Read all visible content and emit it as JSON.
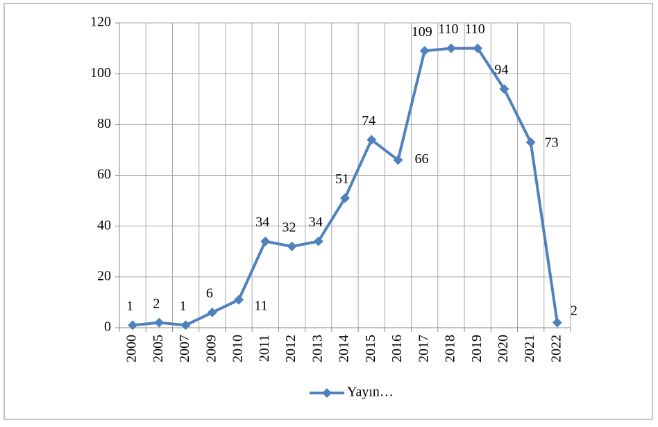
{
  "chart_data": {
    "type": "line",
    "categories": [
      "2000",
      "2005",
      "2007",
      "2009",
      "2010",
      "2011",
      "2012",
      "2013",
      "2014",
      "2015",
      "2016",
      "2017",
      "2018",
      "2019",
      "2020",
      "2021",
      "2022"
    ],
    "series": [
      {
        "name": "Yayın…",
        "color": "#4f81bd",
        "values": [
          1,
          2,
          1,
          6,
          11,
          34,
          32,
          34,
          51,
          74,
          66,
          109,
          110,
          110,
          94,
          73,
          2
        ]
      }
    ],
    "ylim": [
      0,
      120
    ],
    "yticks": [
      0,
      20,
      40,
      60,
      80,
      100,
      120
    ],
    "grid": true,
    "legend": "bottom"
  }
}
